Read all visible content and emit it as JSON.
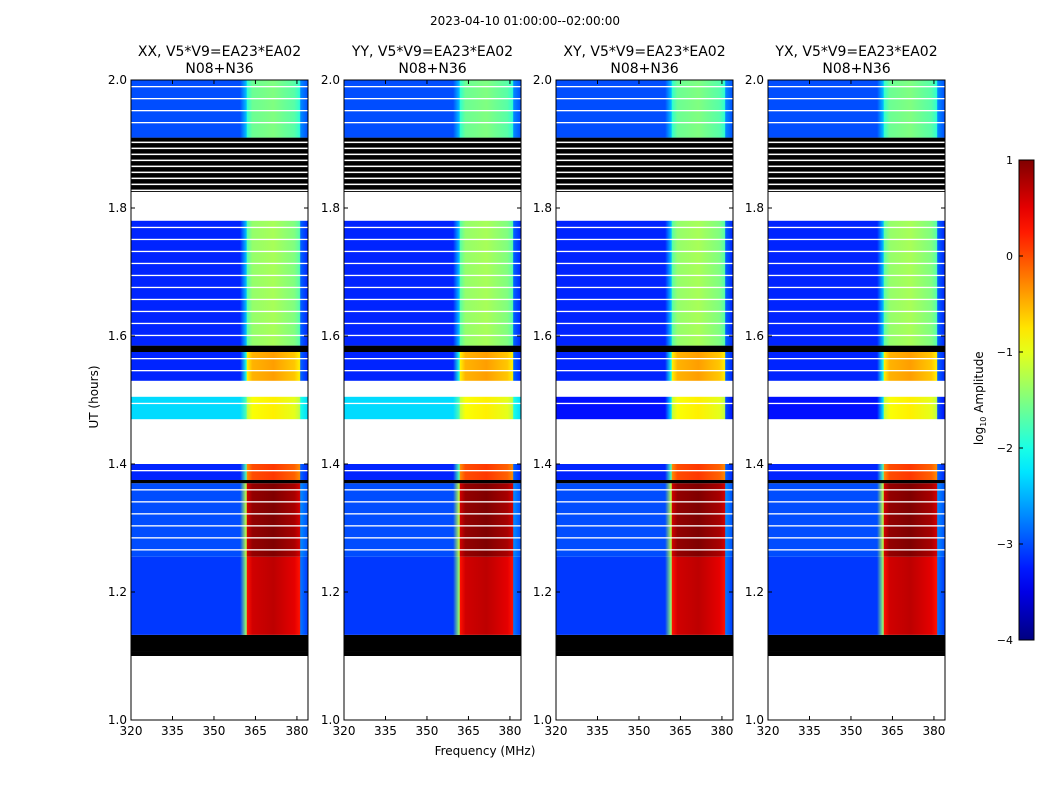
{
  "chart_data": {
    "type": "heatmap",
    "suptitle": "2023-04-10  01:00:00--02:00:00",
    "xlabel": "Frequency (MHz)",
    "ylabel": "UT (hours)",
    "colorbar": {
      "label": "log10 Amplitude",
      "label_main": "log",
      "label_sub": "10",
      "label_tail": " Amplitude",
      "vmin": -4,
      "vmax": 1,
      "ticks": [
        1,
        0,
        -1,
        -2,
        -3,
        -4
      ],
      "tick_labels": [
        "1",
        "0",
        "−1",
        "−2",
        "−3",
        "−4"
      ],
      "colormap": [
        "#00007f",
        "#0000ff",
        "#0080ff",
        "#00ffff",
        "#80ff80",
        "#ffff00",
        "#ff8000",
        "#ff0000",
        "#7f0000"
      ]
    },
    "xlim": [
      320,
      384
    ],
    "ylim": [
      1.0,
      2.0
    ],
    "xticks": [
      320,
      335,
      350,
      365,
      380
    ],
    "xtick_labels": [
      "320",
      "335",
      "350",
      "365",
      "380"
    ],
    "yticks": [
      1.0,
      1.2,
      1.4,
      1.6,
      1.8,
      2.0
    ],
    "ytick_labels": [
      "1.0",
      "1.2",
      "1.4",
      "1.6",
      "1.8",
      "2.0"
    ],
    "panels": [
      {
        "title_line1": "XX, V5*V9=EA23*EA02",
        "title_line2": "N08+N36",
        "polarization": "XX"
      },
      {
        "title_line1": "YY, V5*V9=EA23*EA02",
        "title_line2": "N08+N36",
        "polarization": "YY"
      },
      {
        "title_line1": "XY, V5*V9=EA23*EA02",
        "title_line2": "N08+N36",
        "polarization": "XY"
      },
      {
        "title_line1": "YX, V5*V9=EA23*EA02",
        "title_line2": "N08+N36",
        "polarization": "YX"
      }
    ],
    "time_segments": [
      {
        "name": "no-data",
        "start": 1.0,
        "end": 1.1,
        "fill": "none"
      },
      {
        "name": "flagged",
        "start": 1.1,
        "end": 1.107,
        "fill": "black"
      },
      {
        "name": "data",
        "start": 1.107,
        "end": 1.125
      },
      {
        "name": "flagged",
        "start": 1.125,
        "end": 1.133,
        "fill": "black"
      },
      {
        "name": "data",
        "start": 1.133,
        "end": 1.255,
        "level_off": -3.1,
        "level_on": 0.3
      },
      {
        "name": "data",
        "start": 1.255,
        "end": 1.37,
        "level_off": -3.0,
        "level_on": 0.6
      },
      {
        "name": "flagged",
        "start": 1.37,
        "end": 1.375,
        "fill": "black"
      },
      {
        "name": "data",
        "start": 1.375,
        "end": 1.4,
        "level_off": -3.2,
        "level_on": -0.3
      },
      {
        "name": "no-data",
        "start": 1.4,
        "end": 1.47,
        "fill": "none"
      },
      {
        "name": "data",
        "start": 1.47,
        "end": 1.505,
        "level_off": -2.3,
        "level_on": -1.2
      },
      {
        "name": "no-data",
        "start": 1.505,
        "end": 1.53,
        "fill": "none"
      },
      {
        "name": "data",
        "start": 1.53,
        "end": 1.575,
        "level_off": -3.2,
        "level_on": -0.8
      },
      {
        "name": "flagged",
        "start": 1.575,
        "end": 1.585,
        "fill": "black"
      },
      {
        "name": "data",
        "start": 1.585,
        "end": 1.78,
        "level_off": -3.2,
        "level_on": -1.7
      },
      {
        "name": "no-data",
        "start": 1.78,
        "end": 1.825,
        "fill": "none"
      },
      {
        "name": "flagged",
        "start": 1.825,
        "end": 1.91,
        "fill": "black"
      },
      {
        "name": "data",
        "start": 1.91,
        "end": 2.0,
        "level_off": -3.0,
        "level_on": -1.9
      }
    ],
    "rfi_band_mhz": [
      362,
      381
    ]
  }
}
